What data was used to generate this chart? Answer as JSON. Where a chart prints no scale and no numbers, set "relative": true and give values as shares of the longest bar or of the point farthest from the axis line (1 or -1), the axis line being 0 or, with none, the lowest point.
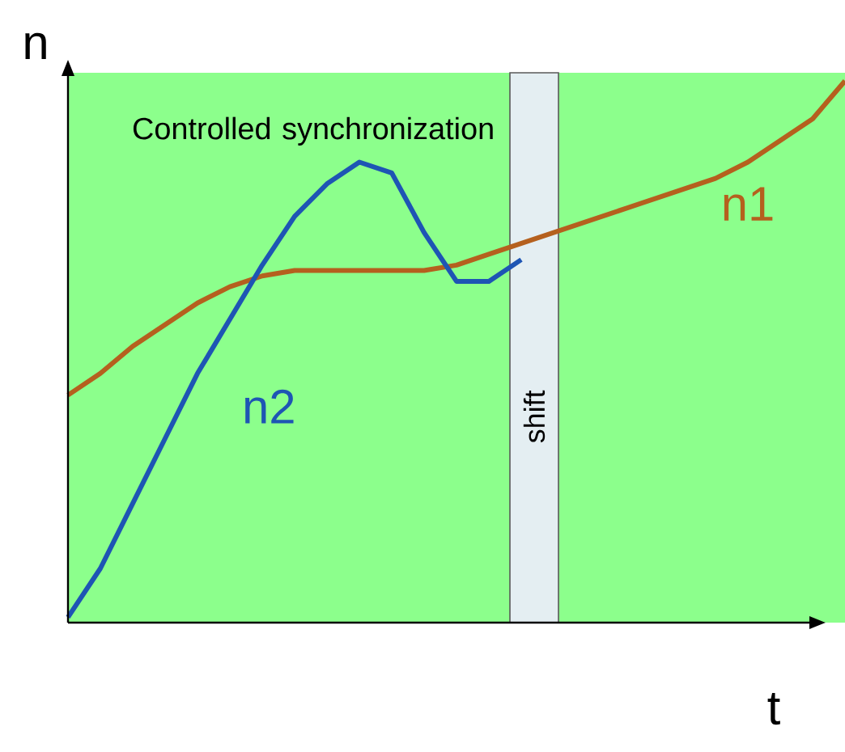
{
  "chart_data": {
    "type": "line",
    "relative": true,
    "xlabel": "t",
    "ylabel": "n",
    "categories": [
      null,
      null,
      null,
      null,
      null,
      null,
      null,
      null,
      null,
      null,
      null,
      null,
      null,
      null,
      null,
      null,
      null,
      null,
      null,
      null,
      null,
      null,
      null,
      null,
      null
    ],
    "series": [
      {
        "name": "n1",
        "color": "#b5601e",
        "values": [
          0.42,
          0.46,
          0.51,
          0.55,
          0.59,
          0.62,
          0.64,
          0.65,
          0.65,
          0.65,
          0.65,
          0.65,
          0.66,
          0.68,
          0.7,
          0.72,
          0.74,
          0.76,
          0.78,
          0.8,
          0.82,
          0.85,
          0.89,
          0.93,
          1
        ]
      },
      {
        "name": "n2",
        "color": "#1e55b4",
        "values": [
          0.01,
          0.1,
          0.22,
          0.34,
          0.46,
          0.56,
          0.66,
          0.75,
          0.81,
          0.85,
          0.83,
          0.72,
          0.63,
          0.63,
          0.67,
          null,
          null,
          null,
          null,
          null,
          null,
          null,
          null,
          null,
          null
        ]
      }
    ],
    "annotations": [
      "Controlled synchronization",
      "shift"
    ],
    "marker": "none",
    "line_style": "solid"
  }
}
